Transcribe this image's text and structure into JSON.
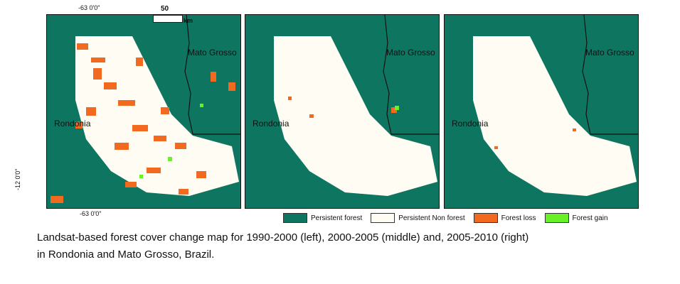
{
  "coordinates": {
    "lon_top": "-63 0'0\"",
    "lon_bottom": "-63 0'0\"",
    "lat_left": "-12 0'0\""
  },
  "scale_bar": {
    "value": "50",
    "unit": "km"
  },
  "panels": [
    {
      "period": "1990-2000",
      "position": "left",
      "labels": {
        "west": "Rondonia",
        "east": "Mato Grosso"
      }
    },
    {
      "period": "2000-2005",
      "position": "middle",
      "labels": {
        "west": "Rondonia",
        "east": "Mato Grosso"
      }
    },
    {
      "period": "2005-2010",
      "position": "right",
      "labels": {
        "west": "Rondonia",
        "east": "Mato Grosso"
      }
    }
  ],
  "legend": [
    {
      "label": "Persistent forest",
      "color": "#0e7561"
    },
    {
      "label": "Persistent Non forest",
      "color": "#fffdf3"
    },
    {
      "label": "Forest loss",
      "color": "#f26a20"
    },
    {
      "label": "Forest gain",
      "color": "#6af028"
    }
  ],
  "caption": {
    "line1": "Landsat-based forest cover change map for 1990-2000 (left), 2000-2005 (middle) and, 2005-2010 (right)",
    "line2": "in Rondonia and Mato Grosso, Brazil."
  }
}
